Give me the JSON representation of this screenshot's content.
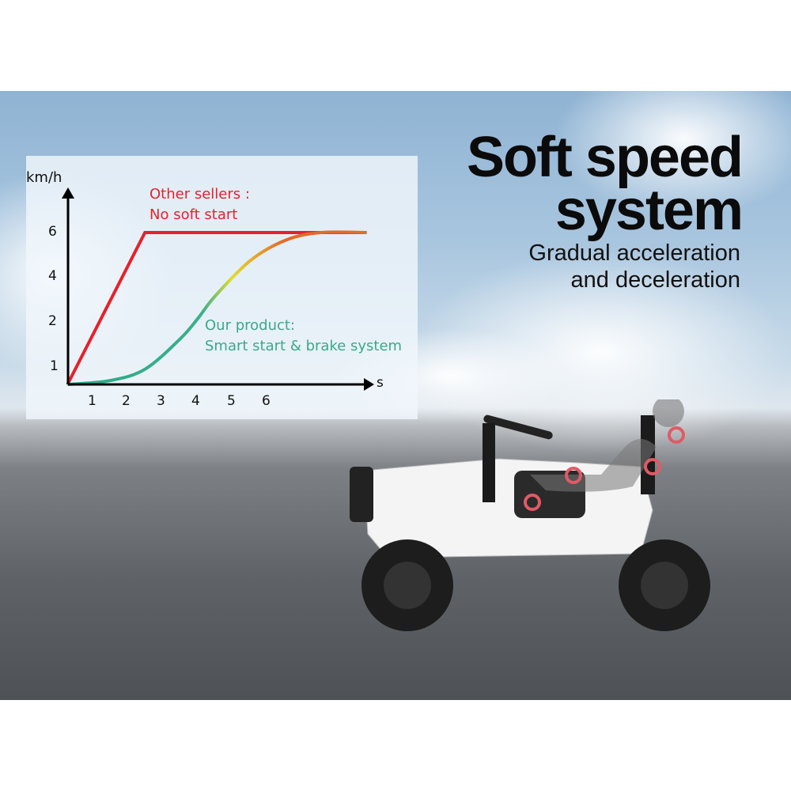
{
  "headline": {
    "line1": "Soft speed",
    "line2": "system"
  },
  "subheadline": {
    "line1": "Gradual acceleration",
    "line2": "and deceleration"
  },
  "chart_data": {
    "type": "line",
    "title": "",
    "xlabel": "s",
    "ylabel": "km/h",
    "x_ticks": [
      "1",
      "2",
      "3",
      "4",
      "5",
      "6"
    ],
    "y_ticks": [
      "1",
      "2",
      "4",
      "6"
    ],
    "grid": false,
    "annotations": [
      {
        "line1": "Other sellers :",
        "line2": "No soft start",
        "color": "#e8202a"
      },
      {
        "line1": "Our product:",
        "line2": "Smart start & brake system",
        "color": "#3aa98a"
      }
    ],
    "series": [
      {
        "name": "Other sellers : No soft start",
        "color": "#e8202a",
        "points": [
          [
            0.3,
            0
          ],
          [
            2.5,
            6
          ],
          [
            8.8,
            6
          ]
        ]
      },
      {
        "name": "Our product: Smart start & brake system",
        "colors": [
          "#2aa98a",
          "#e3dc2c",
          "#e46a2a"
        ],
        "points": [
          [
            0.3,
            0
          ],
          [
            1.5,
            0.15
          ],
          [
            2.5,
            0.6
          ],
          [
            3.5,
            1.8
          ],
          [
            4,
            2.6
          ],
          [
            4.5,
            3.5
          ],
          [
            5.5,
            4.9
          ],
          [
            6.5,
            5.7
          ],
          [
            7.5,
            6
          ],
          [
            8.8,
            6
          ]
        ]
      }
    ]
  }
}
